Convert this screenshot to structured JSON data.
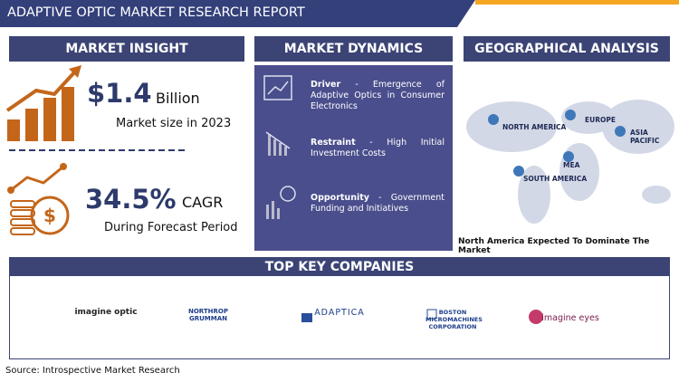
{
  "header": {
    "title": "ADAPTIVE OPTIC MARKET RESEARCH REPORT"
  },
  "market_insight": {
    "heading": "MARKET INSIGHT",
    "market_size": {
      "value": "$1.4",
      "unit": "Billion",
      "label": "Market size in 2023"
    },
    "cagr": {
      "value": "34.5%",
      "unit": "CAGR",
      "label": "During Forecast Period"
    }
  },
  "market_dynamics": {
    "heading": "MARKET DYNAMICS",
    "items": [
      {
        "title": "Driver",
        "text": "- Emergence of Adaptive Optics in Consumer Electronics"
      },
      {
        "title": "Restraint",
        "text": "- High Initial Investment Costs"
      },
      {
        "title": "Opportunity",
        "text": "- Government Funding and Initiatives"
      }
    ]
  },
  "geographical_analysis": {
    "heading": "GEOGRAPHICAL ANALYSIS",
    "regions": [
      "NORTH AMERICA",
      "EUROPE",
      "ASIA PACIFIC",
      "MEA",
      "SOUTH AMERICA"
    ],
    "caption": "North America Expected To Dominate The Market"
  },
  "top_key_companies": {
    "heading": "TOP KEY COMPANIES",
    "companies": [
      "imagine optic",
      "NORTHROP GRUMMAN",
      "ADAPTICA",
      "BOSTON MICROMACHINES CORPORATION",
      "imagine eyes"
    ]
  },
  "footer": {
    "source": "Source: Introspective Market Research"
  }
}
